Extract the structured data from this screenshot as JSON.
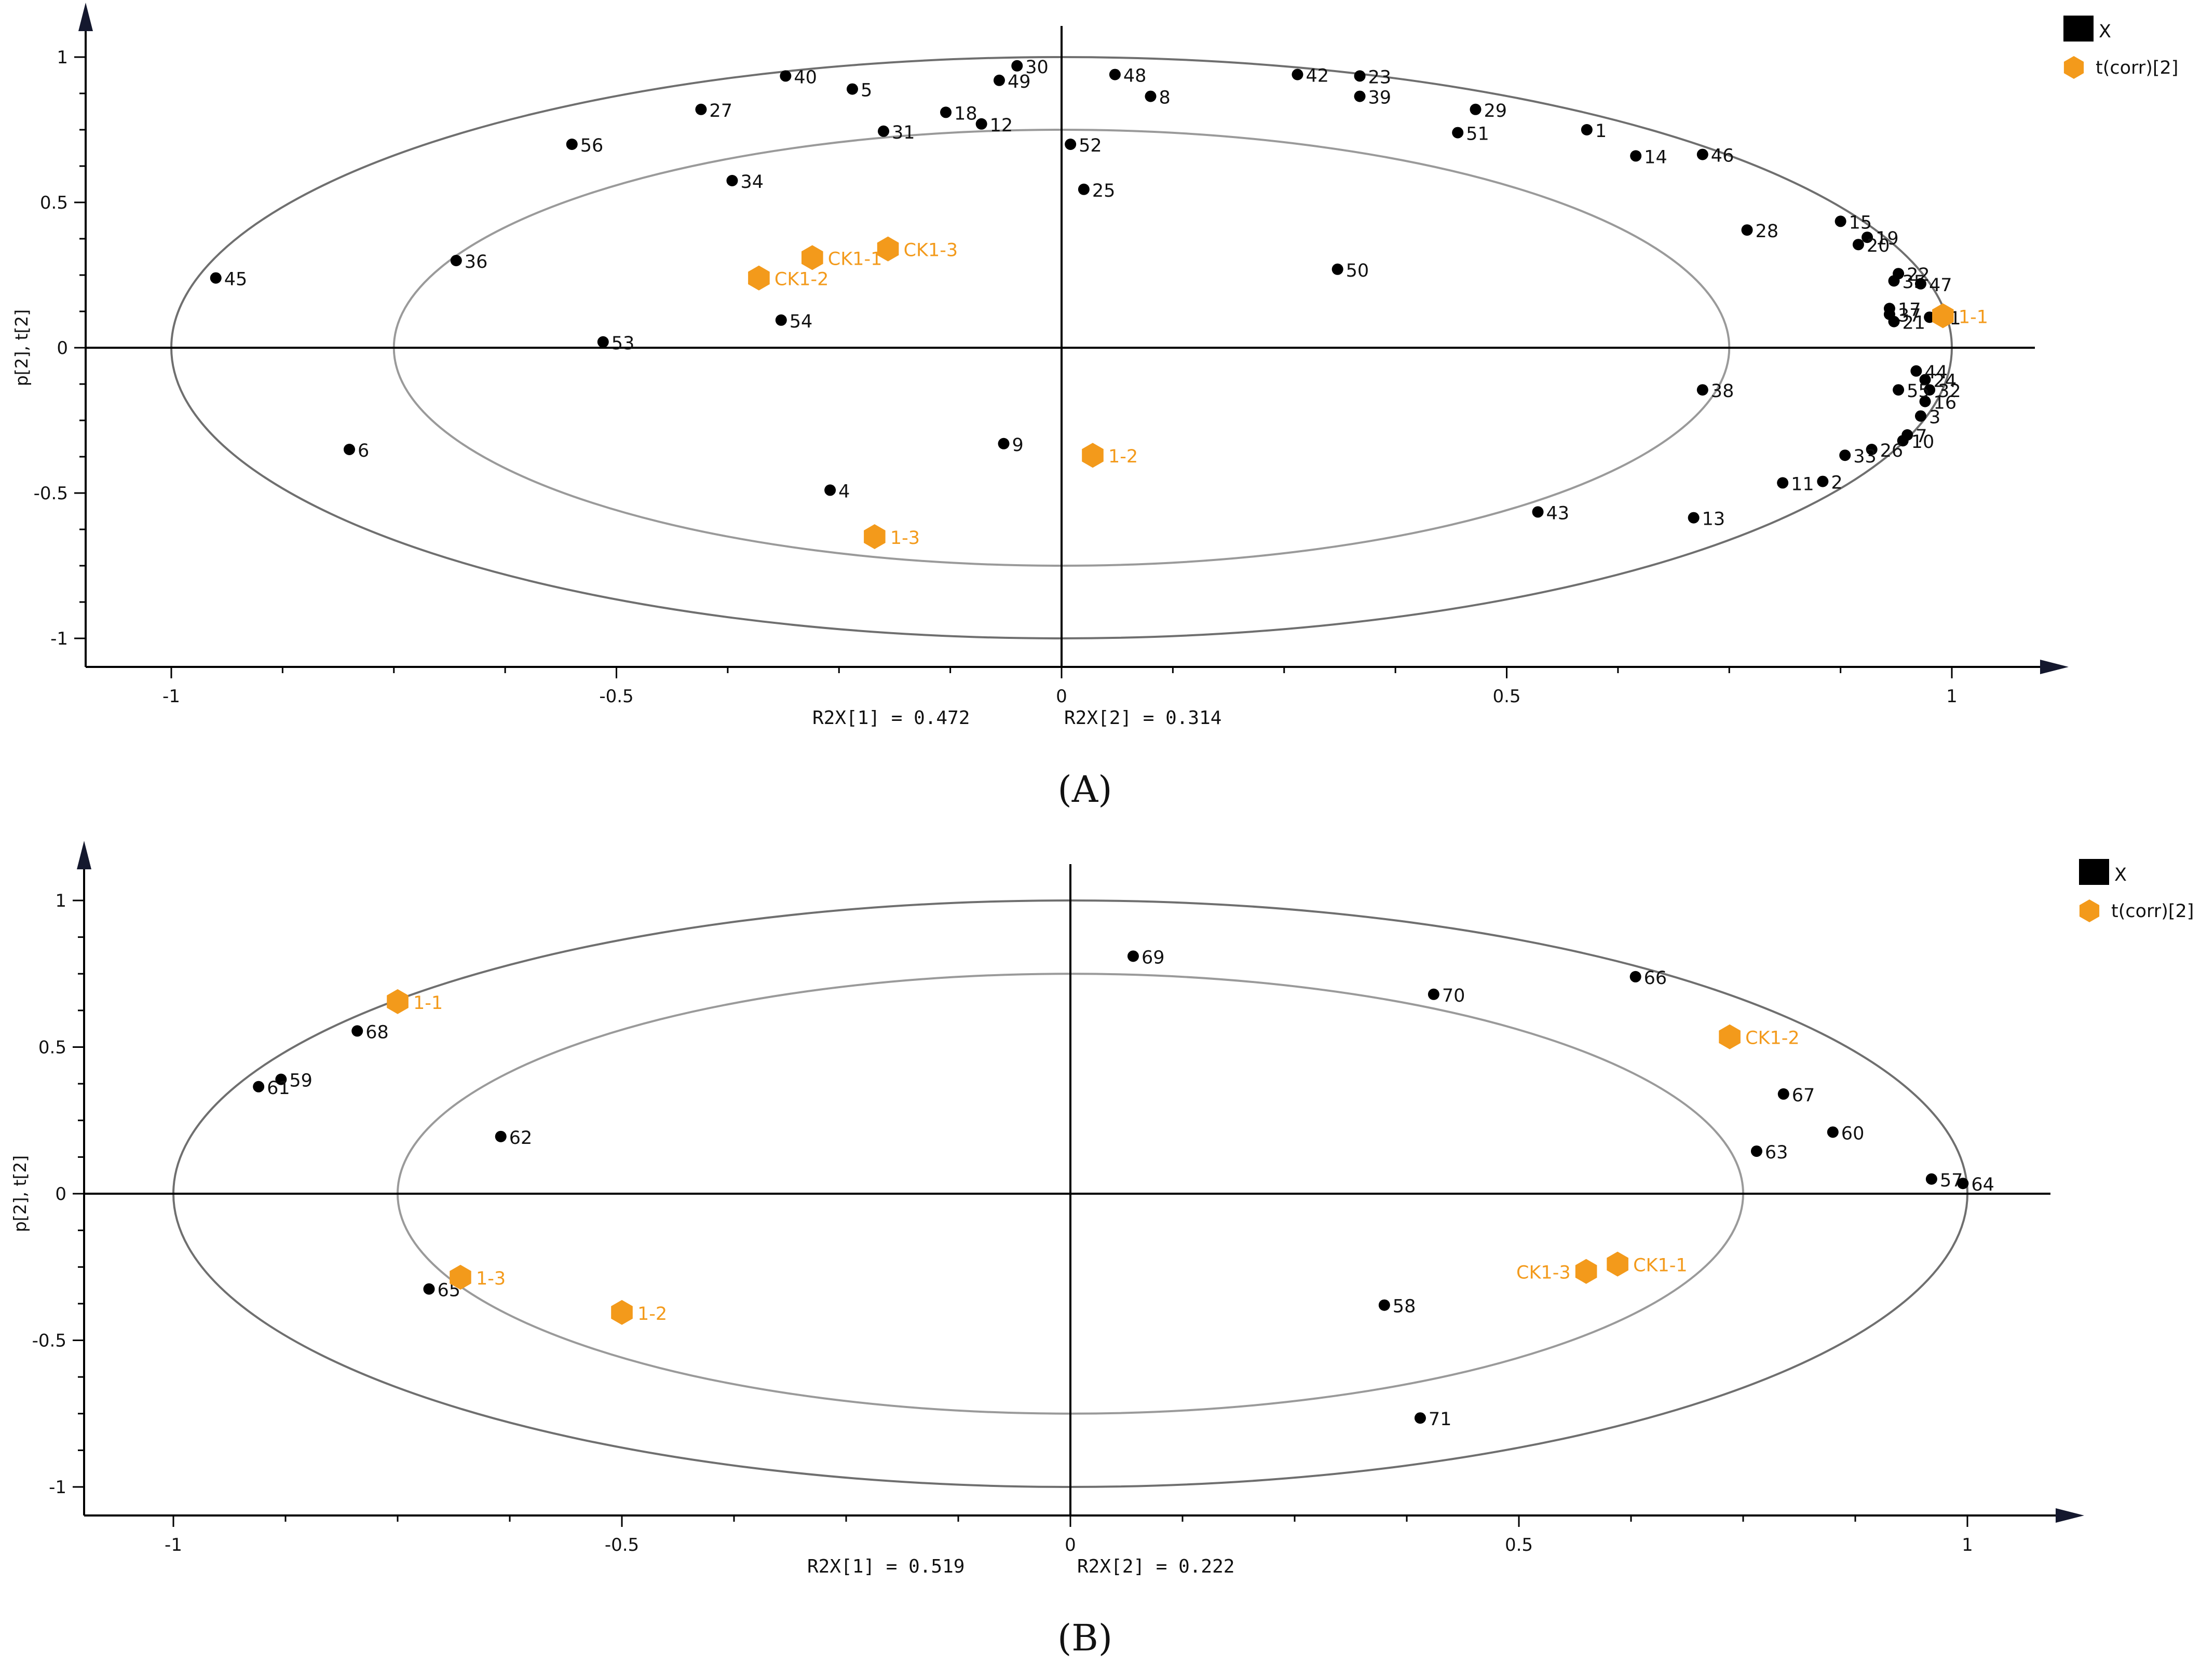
{
  "colors": {
    "variable": "#000000",
    "sample": "#f39a1b",
    "ellipse_outer": "#6f6f6f",
    "ellipse_inner": "#9a9a9a",
    "axis": "#000000"
  },
  "chart_data": [
    {
      "type": "scatter",
      "panel_label": "(A)",
      "xlabel": "",
      "ylabel": "p[2], t[2]",
      "xlim": [
        -1.1,
        1.1
      ],
      "ylim": [
        -1.1,
        1.1
      ],
      "x_ticks": [
        "-1",
        "-0.5",
        "0",
        "0.5",
        "1"
      ],
      "y_ticks": [
        "1",
        "0.5",
        "0",
        "-0.5",
        "-1"
      ],
      "r2x_1": "R2X[1] = 0.472",
      "r2x_2": "R2X[2] = 0.314",
      "legend": [
        {
          "label": "X",
          "icon": "black-square"
        },
        {
          "label": "t(corr)[2]",
          "icon": "orange-hexagon"
        }
      ],
      "variables": [
        {
          "label": "1",
          "x": 0.59,
          "y": 0.75
        },
        {
          "label": "2",
          "x": 0.855,
          "y": -0.46
        },
        {
          "label": "3",
          "x": 0.965,
          "y": -0.235
        },
        {
          "label": "4",
          "x": -0.26,
          "y": -0.49
        },
        {
          "label": "5",
          "x": -0.235,
          "y": 0.89
        },
        {
          "label": "6",
          "x": -0.8,
          "y": -0.35
        },
        {
          "label": "7",
          "x": 0.95,
          "y": -0.3
        },
        {
          "label": "8",
          "x": 0.1,
          "y": 0.865
        },
        {
          "label": "9",
          "x": -0.065,
          "y": -0.33
        },
        {
          "label": "10",
          "x": 0.945,
          "y": -0.32
        },
        {
          "label": "11",
          "x": 0.81,
          "y": -0.465
        },
        {
          "label": "12",
          "x": -0.09,
          "y": 0.77
        },
        {
          "label": "13",
          "x": 0.71,
          "y": -0.585
        },
        {
          "label": "14",
          "x": 0.645,
          "y": 0.66
        },
        {
          "label": "15",
          "x": 0.875,
          "y": 0.435
        },
        {
          "label": "16",
          "x": 0.97,
          "y": -0.185
        },
        {
          "label": "17",
          "x": 0.93,
          "y": 0.135
        },
        {
          "label": "18",
          "x": -0.13,
          "y": 0.81
        },
        {
          "label": "19",
          "x": 0.905,
          "y": 0.38
        },
        {
          "label": "20",
          "x": 0.895,
          "y": 0.355
        },
        {
          "label": "21",
          "x": 0.935,
          "y": 0.09
        },
        {
          "label": "22",
          "x": 0.94,
          "y": 0.255
        },
        {
          "label": "23",
          "x": 0.335,
          "y": 0.935
        },
        {
          "label": "24",
          "x": 0.97,
          "y": -0.11
        },
        {
          "label": "25",
          "x": 0.025,
          "y": 0.545
        },
        {
          "label": "26",
          "x": 0.91,
          "y": -0.35
        },
        {
          "label": "27",
          "x": -0.405,
          "y": 0.82
        },
        {
          "label": "28",
          "x": 0.77,
          "y": 0.405
        },
        {
          "label": "29",
          "x": 0.465,
          "y": 0.82
        },
        {
          "label": "30",
          "x": -0.05,
          "y": 0.97
        },
        {
          "label": "31",
          "x": -0.2,
          "y": 0.745
        },
        {
          "label": "32",
          "x": 0.975,
          "y": -0.145
        },
        {
          "label": "33",
          "x": 0.88,
          "y": -0.37
        },
        {
          "label": "34",
          "x": -0.37,
          "y": 0.575
        },
        {
          "label": "35",
          "x": 0.935,
          "y": 0.23
        },
        {
          "label": "36",
          "x": -0.68,
          "y": 0.3
        },
        {
          "label": "37",
          "x": 0.93,
          "y": 0.115
        },
        {
          "label": "38",
          "x": 0.72,
          "y": -0.145
        },
        {
          "label": "39",
          "x": 0.335,
          "y": 0.865
        },
        {
          "label": "40",
          "x": -0.31,
          "y": 0.935
        },
        {
          "label": "41",
          "x": 0.975,
          "y": 0.105
        },
        {
          "label": "42",
          "x": 0.265,
          "y": 0.94
        },
        {
          "label": "43",
          "x": 0.535,
          "y": -0.565
        },
        {
          "label": "44",
          "x": 0.96,
          "y": -0.08
        },
        {
          "label": "45",
          "x": -0.95,
          "y": 0.24
        },
        {
          "label": "46",
          "x": 0.72,
          "y": 0.665
        },
        {
          "label": "47",
          "x": 0.965,
          "y": 0.22
        },
        {
          "label": "48",
          "x": 0.06,
          "y": 0.94
        },
        {
          "label": "49",
          "x": -0.07,
          "y": 0.92
        },
        {
          "label": "50",
          "x": 0.31,
          "y": 0.27
        },
        {
          "label": "51",
          "x": 0.445,
          "y": 0.74
        },
        {
          "label": "52",
          "x": 0.01,
          "y": 0.7
        },
        {
          "label": "53",
          "x": -0.515,
          "y": 0.02
        },
        {
          "label": "54",
          "x": -0.315,
          "y": 0.095
        },
        {
          "label": "55",
          "x": 0.94,
          "y": -0.145
        },
        {
          "label": "56",
          "x": -0.55,
          "y": 0.7
        }
      ],
      "samples": [
        {
          "label": "CK1-1",
          "x": -0.28,
          "y": 0.31
        },
        {
          "label": "CK1-2",
          "x": -0.34,
          "y": 0.24
        },
        {
          "label": "CK1-3",
          "x": -0.195,
          "y": 0.34
        },
        {
          "label": "1-1",
          "x": 0.99,
          "y": 0.11
        },
        {
          "label": "1-2",
          "x": 0.035,
          "y": -0.37
        },
        {
          "label": "1-3",
          "x": -0.21,
          "y": -0.65
        }
      ]
    },
    {
      "type": "scatter",
      "panel_label": "(B)",
      "xlabel": "",
      "ylabel": "p[2], t[2]",
      "xlim": [
        -1.1,
        1.1
      ],
      "ylim": [
        -1.1,
        1.1
      ],
      "x_ticks": [
        "-1",
        "-0.5",
        "0",
        "0.5",
        "1"
      ],
      "y_ticks": [
        "1",
        "0.5",
        "0",
        "-0.5",
        "-1"
      ],
      "r2x_1": "R2X[1] = 0.519",
      "r2x_2": "R2X[2] = 0.222",
      "legend": [
        {
          "label": "X",
          "icon": "black-square"
        },
        {
          "label": "t(corr)[2]",
          "icon": "orange-hexagon"
        }
      ],
      "variables": [
        {
          "label": "57",
          "x": 0.96,
          "y": 0.05
        },
        {
          "label": "58",
          "x": 0.35,
          "y": -0.38
        },
        {
          "label": "59",
          "x": -0.88,
          "y": 0.39
        },
        {
          "label": "60",
          "x": 0.85,
          "y": 0.21
        },
        {
          "label": "61",
          "x": -0.905,
          "y": 0.365
        },
        {
          "label": "62",
          "x": -0.635,
          "y": 0.195
        },
        {
          "label": "63",
          "x": 0.765,
          "y": 0.145
        },
        {
          "label": "64",
          "x": 0.995,
          "y": 0.035
        },
        {
          "label": "65",
          "x": -0.715,
          "y": -0.325
        },
        {
          "label": "66",
          "x": 0.63,
          "y": 0.74
        },
        {
          "label": "67",
          "x": 0.795,
          "y": 0.34
        },
        {
          "label": "68",
          "x": -0.795,
          "y": 0.555
        },
        {
          "label": "69",
          "x": 0.07,
          "y": 0.81
        },
        {
          "label": "70",
          "x": 0.405,
          "y": 0.68
        },
        {
          "label": "71",
          "x": 0.39,
          "y": -0.765
        }
      ],
      "samples": [
        {
          "label": "1-1",
          "x": -0.75,
          "y": 0.655
        },
        {
          "label": "1-2",
          "x": -0.5,
          "y": -0.405
        },
        {
          "label": "1-3",
          "x": -0.68,
          "y": -0.285
        },
        {
          "label": "CK1-1",
          "x": 0.61,
          "y": -0.24
        },
        {
          "label": "CK1-2",
          "x": 0.735,
          "y": 0.535
        },
        {
          "label": "CK1-3",
          "x": 0.575,
          "y": -0.265
        }
      ]
    }
  ]
}
